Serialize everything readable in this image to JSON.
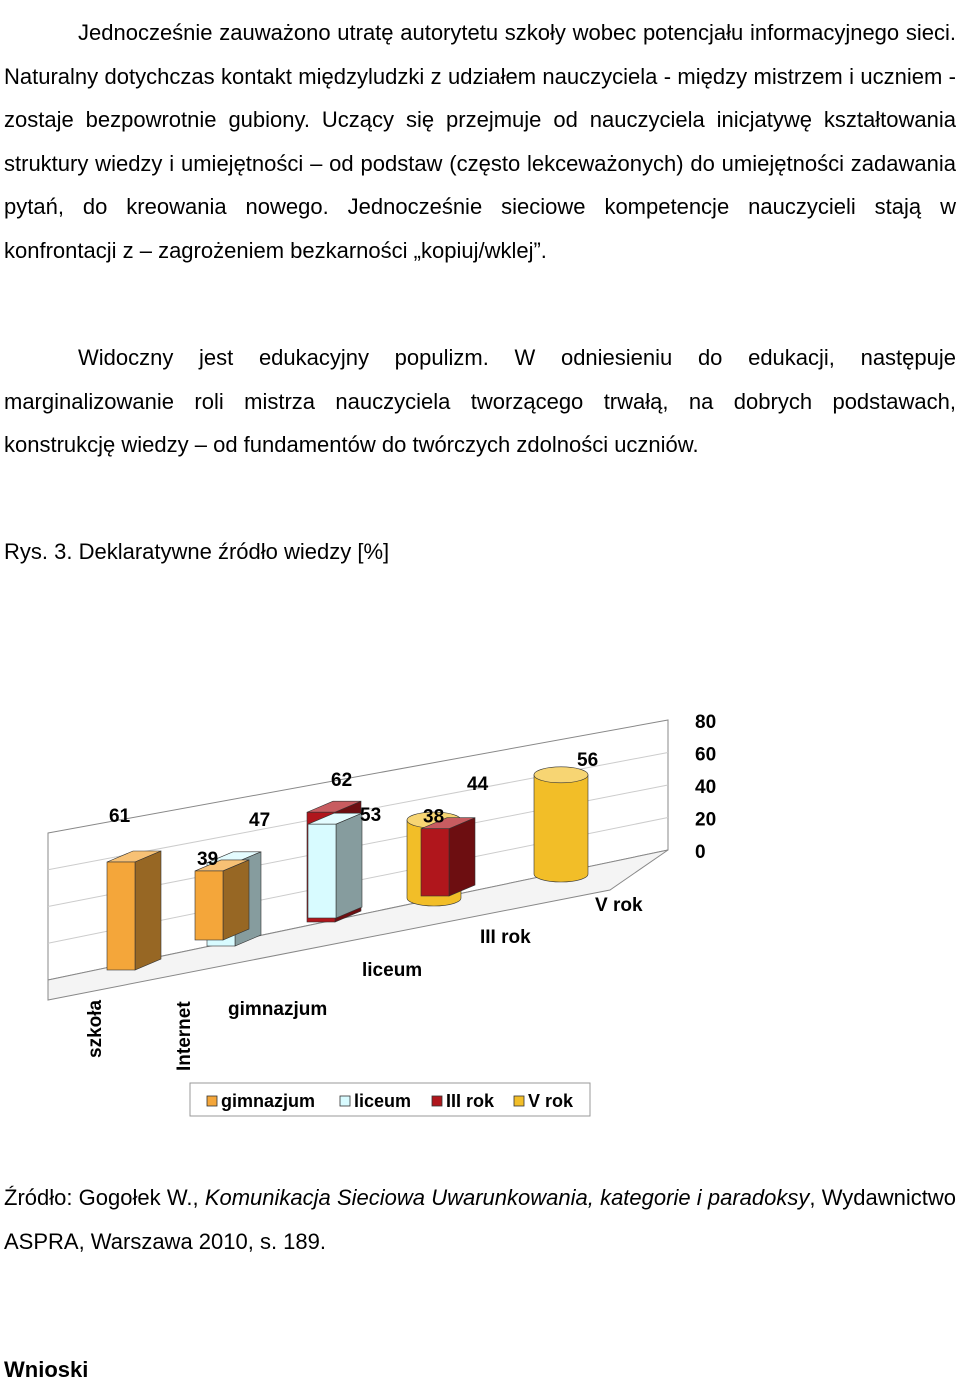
{
  "paragraphs": [
    "Jednocześnie zauważono utratę autorytetu szkoły wobec potencjału informacyjnego sieci. Naturalny dotychczas kontakt międzyludzki z udziałem nauczyciela - między mistrzem i uczniem - zostaje bezpowrotnie gubiony. Uczący się przejmuje od nauczyciela inicjatywę kształtowania struktury wiedzy i umiejętności – od podstaw (często lekceważonych) do umiejętności zadawania pytań, do kreowania nowego. Jednocześnie sieciowe kompetencje nauczycieli stają w konfrontacji z – zagrożeniem bezkarności „kopiuj/wklej”.",
    "Widoczny jest edukacyjny populizm. W odniesieniu do edukacji, następuje marginalizowanie roli mistrza nauczyciela tworzącego trwałą, na dobrych podstawach, konstrukcję wiedzy – od fundamentów do twórczych zdolności uczniów."
  ],
  "figure_caption": "Rys. 3. Deklaratywne źródło wiedzy [%]",
  "chart_data": {
    "type": "bar",
    "style": "3d-grouped",
    "depth_categories": [
      "szkoła",
      "Internet"
    ],
    "series": [
      {
        "name": "gimnazjum",
        "values": [
          61,
          39
        ],
        "color": "#F4A63A"
      },
      {
        "name": "liceum",
        "values": [
          47,
          53
        ],
        "color": "#D8FBFF"
      },
      {
        "name": "III rok",
        "values": [
          62,
          38
        ],
        "color": "#B0161C"
      },
      {
        "name": "V rok",
        "values": [
          44,
          56
        ],
        "color": "#F2BE28"
      }
    ],
    "series_axis_labels": [
      "gimnazjum",
      "liceum",
      "III rok",
      "V rok"
    ],
    "y_ticks": [
      "80",
      "60",
      "40",
      "20",
      "0"
    ],
    "ylim": [
      0,
      80
    ],
    "legend_position": "bottom"
  },
  "source": {
    "prefix": "Źródło: Gogołek W., ",
    "title": "Komunikacja Sieciowa Uwarunkowania, kategorie i paradoksy",
    "suffix": ", Wydawnictwo ASPRA, Warszawa 2010, s. 189."
  },
  "conclusions_heading": "Wnioski"
}
